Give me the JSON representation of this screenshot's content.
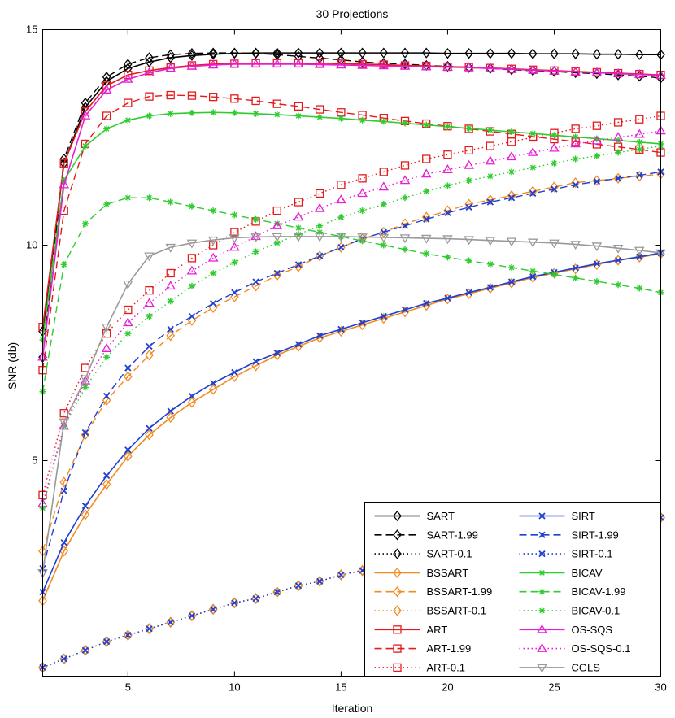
{
  "chart_data": {
    "type": "line",
    "title": "30 Projections",
    "xlabel": "Iteration",
    "ylabel": "SNR (db)",
    "xlim": [
      1,
      30
    ],
    "ylim": [
      0,
      15
    ],
    "xticks": [
      5,
      10,
      15,
      20,
      25,
      30
    ],
    "yticks": [
      5,
      10,
      15
    ],
    "grid": false,
    "legend_position": "bottom-right",
    "x": [
      1,
      2,
      3,
      4,
      5,
      6,
      7,
      8,
      9,
      10,
      11,
      12,
      13,
      14,
      15,
      16,
      17,
      18,
      19,
      20,
      21,
      22,
      23,
      24,
      25,
      26,
      27,
      28,
      29,
      30
    ],
    "series": [
      {
        "name": "SART",
        "color": "#000000",
        "dash": "solid",
        "marker": "diamond",
        "values": [
          8.0,
          11.9,
          13.2,
          13.8,
          14.1,
          14.25,
          14.35,
          14.4,
          14.43,
          14.45,
          14.46,
          14.46,
          14.46,
          14.46,
          14.46,
          14.46,
          14.46,
          14.46,
          14.46,
          14.45,
          14.45,
          14.45,
          14.45,
          14.44,
          14.44,
          14.44,
          14.43,
          14.43,
          14.42,
          14.42
        ]
      },
      {
        "name": "SART-1.99",
        "color": "#000000",
        "dash": "dashed",
        "marker": "diamond",
        "values": [
          7.4,
          12.0,
          13.3,
          13.9,
          14.2,
          14.35,
          14.42,
          14.45,
          14.46,
          14.46,
          14.45,
          14.42,
          14.38,
          14.34,
          14.3,
          14.25,
          14.22,
          14.2,
          14.17,
          14.15,
          14.12,
          14.1,
          14.07,
          14.05,
          14.03,
          14.0,
          13.98,
          13.95,
          13.92,
          13.88
        ]
      },
      {
        "name": "SART-0.1",
        "color": "#000000",
        "dash": "dotted",
        "marker": "diamond",
        "values": [
          0.2,
          0.4,
          0.6,
          0.8,
          0.95,
          1.1,
          1.25,
          1.4,
          1.55,
          1.7,
          1.8,
          1.95,
          2.1,
          2.2,
          2.35,
          2.45,
          2.55,
          2.65,
          2.75,
          2.85,
          2.95,
          3.05,
          3.13,
          3.22,
          3.3,
          3.38,
          3.46,
          3.53,
          3.6,
          3.68
        ]
      },
      {
        "name": "BSSART",
        "color": "#f28b20",
        "dash": "solid",
        "marker": "diamond",
        "values": [
          1.75,
          2.9,
          3.75,
          4.45,
          5.1,
          5.6,
          6.0,
          6.35,
          6.65,
          6.95,
          7.2,
          7.45,
          7.65,
          7.85,
          8.0,
          8.15,
          8.3,
          8.45,
          8.6,
          8.75,
          8.87,
          9.0,
          9.12,
          9.25,
          9.35,
          9.45,
          9.55,
          9.65,
          9.72,
          9.8
        ]
      },
      {
        "name": "BSSART-1.99",
        "color": "#f28b20",
        "dash": "dashed",
        "marker": "diamond",
        "values": [
          2.9,
          4.5,
          5.6,
          6.4,
          6.95,
          7.45,
          7.9,
          8.25,
          8.55,
          8.8,
          9.05,
          9.3,
          9.5,
          9.75,
          9.95,
          10.15,
          10.3,
          10.5,
          10.65,
          10.8,
          10.95,
          11.05,
          11.15,
          11.25,
          11.35,
          11.45,
          11.5,
          11.55,
          11.6,
          11.65
        ]
      },
      {
        "name": "BSSART-0.1",
        "color": "#f28b20",
        "dash": "dotted",
        "marker": "diamond",
        "values": [
          0.2,
          0.4,
          0.6,
          0.8,
          0.95,
          1.1,
          1.25,
          1.4,
          1.55,
          1.7,
          1.8,
          1.95,
          2.1,
          2.2,
          2.35,
          2.45,
          2.55,
          2.65,
          2.75,
          2.85,
          2.95,
          3.05,
          3.13,
          3.22,
          3.3,
          3.38,
          3.46,
          3.53,
          3.6,
          3.68
        ]
      },
      {
        "name": "ART",
        "color": "#e41a1c",
        "dash": "solid",
        "marker": "square",
        "values": [
          8.1,
          11.9,
          13.1,
          13.7,
          13.95,
          14.05,
          14.12,
          14.17,
          14.2,
          14.21,
          14.22,
          14.22,
          14.22,
          14.22,
          14.21,
          14.2,
          14.19,
          14.17,
          14.16,
          14.14,
          14.13,
          14.11,
          14.09,
          14.07,
          14.05,
          14.03,
          14.01,
          13.99,
          13.97,
          13.95
        ]
      },
      {
        "name": "ART-1.99",
        "color": "#e41a1c",
        "dash": "dashed",
        "marker": "square",
        "values": [
          7.1,
          10.8,
          12.35,
          13.0,
          13.3,
          13.45,
          13.48,
          13.47,
          13.44,
          13.4,
          13.35,
          13.28,
          13.22,
          13.15,
          13.08,
          13.02,
          12.95,
          12.88,
          12.82,
          12.76,
          12.7,
          12.64,
          12.58,
          12.52,
          12.46,
          12.4,
          12.34,
          12.28,
          12.22,
          12.15
        ]
      },
      {
        "name": "ART-0.1",
        "color": "#e41a1c",
        "dash": "dotted",
        "marker": "square",
        "values": [
          4.2,
          6.1,
          7.15,
          7.95,
          8.5,
          8.95,
          9.35,
          9.7,
          10.0,
          10.3,
          10.55,
          10.8,
          11.0,
          11.2,
          11.4,
          11.55,
          11.7,
          11.85,
          12.0,
          12.1,
          12.2,
          12.3,
          12.4,
          12.5,
          12.6,
          12.7,
          12.77,
          12.85,
          12.92,
          13.0
        ]
      },
      {
        "name": "SIRT",
        "color": "#1f3fd2",
        "dash": "solid",
        "marker": "x",
        "values": [
          1.95,
          3.1,
          3.95,
          4.65,
          5.25,
          5.75,
          6.15,
          6.5,
          6.8,
          7.05,
          7.3,
          7.5,
          7.7,
          7.9,
          8.05,
          8.2,
          8.35,
          8.5,
          8.65,
          8.77,
          8.9,
          9.02,
          9.15,
          9.27,
          9.37,
          9.47,
          9.57,
          9.65,
          9.73,
          9.82
        ]
      },
      {
        "name": "SIRT-1.99",
        "color": "#1f3fd2",
        "dash": "dashed",
        "marker": "x",
        "values": [
          2.5,
          4.3,
          5.65,
          6.5,
          7.15,
          7.65,
          8.05,
          8.35,
          8.65,
          8.9,
          9.15,
          9.35,
          9.55,
          9.75,
          9.95,
          10.15,
          10.3,
          10.45,
          10.6,
          10.75,
          10.88,
          11.0,
          11.1,
          11.2,
          11.3,
          11.4,
          11.48,
          11.55,
          11.62,
          11.7
        ]
      },
      {
        "name": "SIRT-0.1",
        "color": "#1f3fd2",
        "dash": "dotted",
        "marker": "x",
        "values": [
          0.2,
          0.4,
          0.6,
          0.8,
          0.95,
          1.1,
          1.25,
          1.4,
          1.55,
          1.7,
          1.8,
          1.95,
          2.1,
          2.2,
          2.35,
          2.45,
          2.55,
          2.65,
          2.75,
          2.85,
          2.95,
          3.05,
          3.13,
          3.22,
          3.3,
          3.38,
          3.46,
          3.53,
          3.6,
          3.68
        ]
      },
      {
        "name": "BICAV",
        "color": "#2ecc2e",
        "dash": "solid",
        "marker": "asterisk",
        "values": [
          7.8,
          11.5,
          12.3,
          12.7,
          12.9,
          13.0,
          13.05,
          13.07,
          13.08,
          13.07,
          13.05,
          13.03,
          13.0,
          12.97,
          12.94,
          12.9,
          12.87,
          12.83,
          12.79,
          12.75,
          12.71,
          12.67,
          12.63,
          12.59,
          12.55,
          12.51,
          12.47,
          12.43,
          12.39,
          12.35
        ]
      },
      {
        "name": "BICAV-1.99",
        "color": "#2ecc2e",
        "dash": "dashed",
        "marker": "asterisk",
        "values": [
          6.6,
          9.55,
          10.5,
          10.95,
          11.1,
          11.1,
          11.0,
          10.9,
          10.8,
          10.7,
          10.6,
          10.5,
          10.4,
          10.3,
          10.2,
          10.1,
          10.0,
          9.9,
          9.8,
          9.72,
          9.64,
          9.56,
          9.48,
          9.4,
          9.32,
          9.24,
          9.16,
          9.08,
          9.0,
          8.9
        ]
      },
      {
        "name": "BICAV-0.1",
        "color": "#2ecc2e",
        "dash": "dotted",
        "marker": "asterisk",
        "values": [
          3.9,
          5.8,
          6.7,
          7.4,
          7.95,
          8.35,
          8.7,
          9.05,
          9.35,
          9.6,
          9.85,
          10.05,
          10.25,
          10.45,
          10.65,
          10.8,
          10.95,
          11.1,
          11.25,
          11.38,
          11.5,
          11.6,
          11.7,
          11.8,
          11.9,
          12.0,
          12.07,
          12.15,
          12.22,
          12.3
        ]
      },
      {
        "name": "OS-SQS",
        "color": "#e81ed6",
        "dash": "solid",
        "marker": "triangle",
        "values": [
          7.4,
          11.4,
          13.0,
          13.6,
          13.85,
          14.0,
          14.1,
          14.15,
          14.18,
          14.2,
          14.2,
          14.2,
          14.2,
          14.19,
          14.18,
          14.17,
          14.16,
          14.15,
          14.14,
          14.13,
          14.12,
          14.1,
          14.08,
          14.06,
          14.04,
          14.02,
          14.0,
          13.98,
          13.96,
          13.94
        ]
      },
      {
        "name": "OS-SQS-0.1",
        "color": "#e81ed6",
        "dash": "dotted",
        "marker": "triangle",
        "values": [
          4.0,
          5.8,
          6.85,
          7.6,
          8.2,
          8.65,
          9.05,
          9.4,
          9.7,
          9.95,
          10.2,
          10.45,
          10.65,
          10.85,
          11.05,
          11.2,
          11.35,
          11.5,
          11.65,
          11.75,
          11.85,
          11.95,
          12.05,
          12.15,
          12.25,
          12.35,
          12.42,
          12.5,
          12.57,
          12.65
        ]
      },
      {
        "name": "CGLS",
        "color": "#999999",
        "dash": "solid",
        "marker": "triangle-down",
        "values": [
          2.4,
          5.9,
          6.9,
          8.1,
          9.1,
          9.75,
          9.95,
          10.05,
          10.12,
          10.17,
          10.19,
          10.2,
          10.2,
          10.2,
          10.2,
          10.19,
          10.18,
          10.17,
          10.16,
          10.15,
          10.13,
          10.11,
          10.09,
          10.07,
          10.05,
          10.02,
          9.98,
          9.93,
          9.88,
          9.82
        ]
      }
    ],
    "legend_order": [
      [
        "SART",
        "SIRT"
      ],
      [
        "SART-1.99",
        "SIRT-1.99"
      ],
      [
        "SART-0.1",
        "SIRT-0.1"
      ],
      [
        "BSSART",
        "BICAV"
      ],
      [
        "BSSART-1.99",
        "BICAV-1.99"
      ],
      [
        "BSSART-0.1",
        "BICAV-0.1"
      ],
      [
        "ART",
        "OS-SQS"
      ],
      [
        "ART-1.99",
        "OS-SQS-0.1"
      ],
      [
        "ART-0.1",
        "CGLS"
      ]
    ]
  }
}
